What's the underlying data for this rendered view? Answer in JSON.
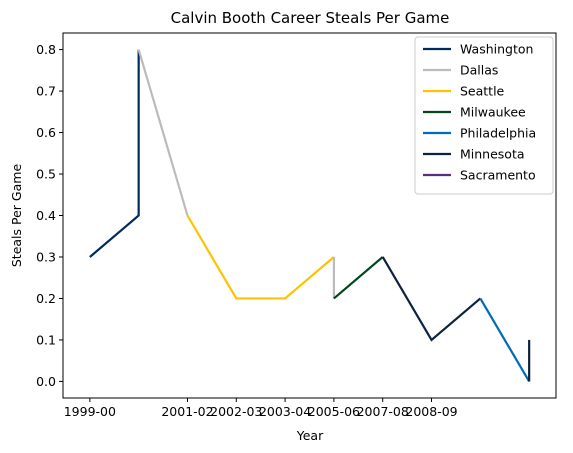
{
  "chart_data": {
    "type": "line",
    "title": "Calvin Booth Career Steals Per Game",
    "xlabel": "Year",
    "ylabel": "Steals Per Game",
    "x_tick_labels": [
      "1999-00",
      "2001-02",
      "2002-03",
      "2003-04",
      "2005-06",
      "2007-08",
      "2008-09"
    ],
    "x_tick_positions": [
      0,
      2,
      3,
      4,
      5,
      6,
      7
    ],
    "xlim": [
      -0.55,
      9.55
    ],
    "ylim": [
      -0.04,
      0.84
    ],
    "y_ticks": [
      0.0,
      0.1,
      0.2,
      0.3,
      0.4,
      0.5,
      0.6,
      0.7,
      0.8
    ],
    "y_tick_labels": [
      "0.0",
      "0.1",
      "0.2",
      "0.3",
      "0.4",
      "0.5",
      "0.6",
      "0.7",
      "0.8"
    ],
    "legend_position": "top-right",
    "grid": false,
    "series": [
      {
        "name": "Washington",
        "color": "#002B5C",
        "points": [
          [
            0,
            0.3
          ],
          [
            1,
            0.4
          ],
          [
            1,
            0.8
          ]
        ]
      },
      {
        "name": "Dallas",
        "color": "#BBBBBB",
        "points": [
          [
            1,
            0.8
          ],
          [
            2,
            0.4
          ]
        ]
      },
      {
        "name": "Seattle",
        "color": "#FFC200",
        "points": [
          [
            2,
            0.4
          ],
          [
            3,
            0.2
          ],
          [
            4,
            0.2
          ],
          [
            5,
            0.3
          ]
        ]
      },
      {
        "name": "Dallas",
        "color": "#BBBBBB",
        "points": [
          [
            5,
            0.3
          ],
          [
            5,
            0.2
          ]
        ]
      },
      {
        "name": "Milwaukee",
        "color": "#00471B",
        "points": [
          [
            5,
            0.2
          ],
          [
            6,
            0.3
          ]
        ]
      },
      {
        "name": "Minnesota",
        "color": "#0C2340",
        "points": [
          [
            6,
            0.3
          ],
          [
            7,
            0.1
          ],
          [
            8,
            0.2
          ]
        ]
      },
      {
        "name": "Philadelphia",
        "color": "#006BB6",
        "points": [
          [
            8,
            0.2
          ],
          [
            9,
            0.0
          ]
        ]
      },
      {
        "name": "Minnesota",
        "color": "#0C2340",
        "points": [
          [
            9,
            0.0
          ],
          [
            9,
            0.1
          ]
        ]
      }
    ],
    "legend": [
      {
        "name": "Washington",
        "color": "#002B5C"
      },
      {
        "name": "Dallas",
        "color": "#BBBBBB"
      },
      {
        "name": "Seattle",
        "color": "#FFC200"
      },
      {
        "name": "Milwaukee",
        "color": "#00471B"
      },
      {
        "name": "Philadelphia",
        "color": "#006BB6"
      },
      {
        "name": "Minnesota",
        "color": "#0C2340"
      },
      {
        "name": "Sacramento",
        "color": "#5A2D81"
      }
    ]
  }
}
